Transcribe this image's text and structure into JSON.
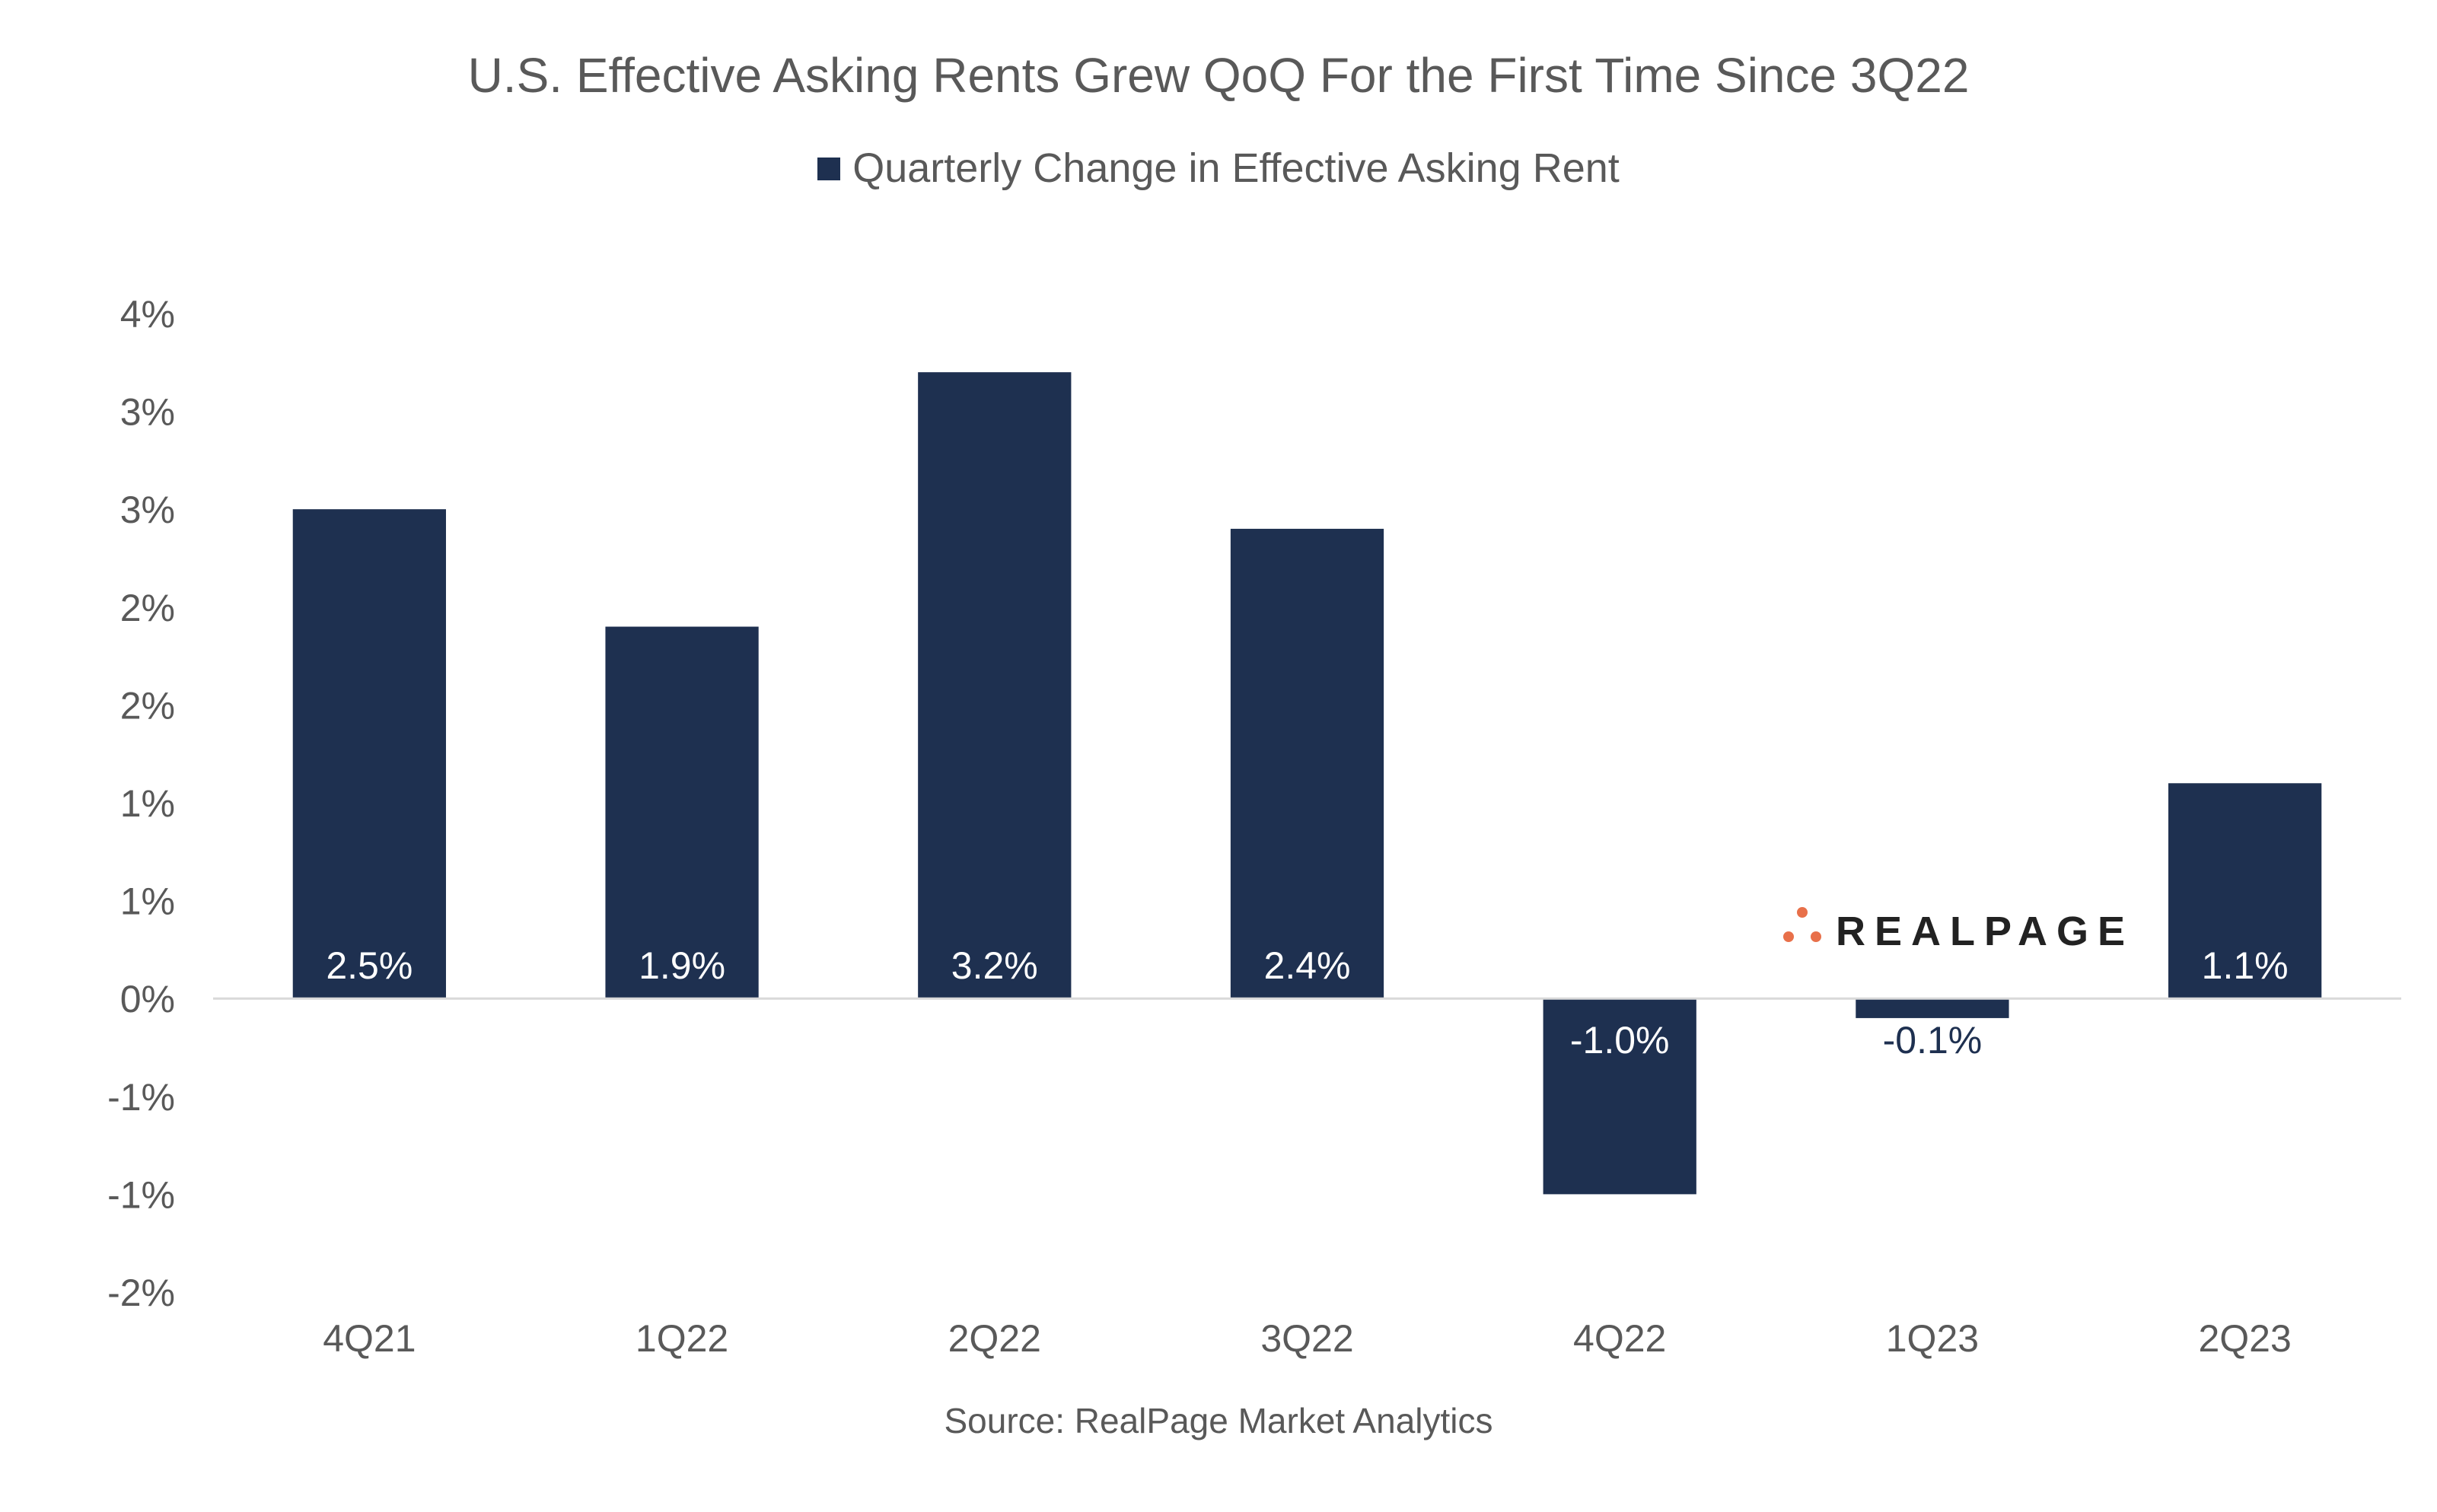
{
  "chart_data": {
    "type": "bar",
    "title": "U.S. Effective Asking Rents Grew QoQ For the First Time Since 3Q22",
    "legend": [
      "Quarterly Change in Effective Asking Rent"
    ],
    "legend_position": "top-center",
    "categories": [
      "4Q21",
      "1Q22",
      "2Q22",
      "3Q22",
      "4Q22",
      "1Q23",
      "2Q23"
    ],
    "series": [
      {
        "name": "Quarterly Change in Effective Asking Rent",
        "values": [
          2.5,
          1.9,
          3.2,
          2.4,
          -1.0,
          -0.1,
          1.1
        ],
        "data_labels": [
          "2.5%",
          "1.9%",
          "3.2%",
          "2.4%",
          "-1.0%",
          "-0.1%",
          "1.1%"
        ]
      }
    ],
    "y_ticks": [
      {
        "value": 3.5,
        "label": "4%"
      },
      {
        "value": 3.0,
        "label": "3%"
      },
      {
        "value": 2.5,
        "label": "3%"
      },
      {
        "value": 2.0,
        "label": "2%"
      },
      {
        "value": 1.5,
        "label": "2%"
      },
      {
        "value": 1.0,
        "label": "1%"
      },
      {
        "value": 0.5,
        "label": "1%"
      },
      {
        "value": 0.0,
        "label": "0%"
      },
      {
        "value": -0.5,
        "label": "-1%"
      },
      {
        "value": -1.0,
        "label": "-1%"
      },
      {
        "value": -1.5,
        "label": "-2%"
      }
    ],
    "ylim": [
      -1.5,
      3.5
    ],
    "xlabel": "",
    "ylabel": "",
    "grid": false,
    "source": "Source: RealPage Market Analytics"
  },
  "logo": {
    "text": "REALPAGE"
  },
  "colors": {
    "bar": "#1e3050",
    "label_inside": "#ffffff",
    "label_outside": "#1e3050",
    "axis": "#d9d9d9",
    "logo_dots": "#e8704a"
  }
}
